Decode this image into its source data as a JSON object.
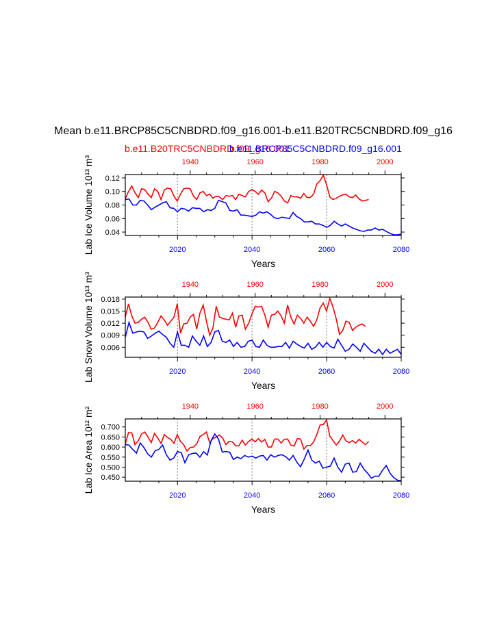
{
  "figure": {
    "title": "Mean b.e11.BRCP85C5CNBDRD.f09_g16.001-b.e11.B20TRC5CNBDRD.f09_g16",
    "legend_red": "b.e11.B20TRC5CNBDRD.f09_g16.001",
    "legend_blue": "b.e11.BRCP85C5CNBDRD.f09_g16.001",
    "colors": {
      "historical": "#ff0000",
      "rcp85": "#0000ff",
      "axis": "#000000",
      "refline": "#999999"
    }
  },
  "chart_data": [
    {
      "type": "line",
      "title": "",
      "xlabel": "Years",
      "ylabel": "Lab Ice Volume 10¹³ m³",
      "bottom_axis": {
        "range": [
          2006,
          2080
        ],
        "ticks": [
          2020,
          2040,
          2060,
          2080
        ],
        "color": "#0000ff"
      },
      "top_axis": {
        "range": [
          1920,
          2005
        ],
        "ticks": [
          1940,
          1960,
          1980,
          2000
        ],
        "color": "#ff0000"
      },
      "ylim": [
        0.035,
        0.125
      ],
      "yticks": [
        0.04,
        0.06,
        0.08,
        0.1,
        0.12
      ],
      "yticklabels": [
        "0.04",
        "0.06",
        "0.08",
        "0.10",
        "0.12"
      ],
      "ref_lines_x": [
        2020,
        2040,
        2060
      ],
      "series": [
        {
          "name": "b.e11.B20TRC5CNBDRD.f09_g16.001",
          "color": "#ff0000",
          "axis": "top",
          "x_start": 1920,
          "values": [
            0.089,
            0.1,
            0.108,
            0.098,
            0.091,
            0.104,
            0.103,
            0.096,
            0.091,
            0.104,
            0.1,
            0.088,
            0.102,
            0.105,
            0.104,
            0.093,
            0.086,
            0.096,
            0.104,
            0.105,
            0.104,
            0.093,
            0.088,
            0.098,
            0.1,
            0.094,
            0.096,
            0.09,
            0.093,
            0.092,
            0.088,
            0.094,
            0.093,
            0.094,
            0.088,
            0.096,
            0.094,
            0.092,
            0.1,
            0.103,
            0.1,
            0.096,
            0.102,
            0.098,
            0.085,
            0.09,
            0.1,
            0.098,
            0.093,
            0.086,
            0.083,
            0.094,
            0.092,
            0.092,
            0.09,
            0.097,
            0.091,
            0.091,
            0.096,
            0.111,
            0.116,
            0.124,
            0.11,
            0.092,
            0.088,
            0.09,
            0.093,
            0.095,
            0.096,
            0.092,
            0.091,
            0.095,
            0.089,
            0.086,
            0.087,
            0.088
          ]
        },
        {
          "name": "b.e11.BRCP85C5CNBDRD.f09_g16.001",
          "color": "#0000ff",
          "axis": "bottom",
          "x_start": 2006,
          "values": [
            0.088,
            0.089,
            0.08,
            0.08,
            0.087,
            0.086,
            0.08,
            0.073,
            0.077,
            0.08,
            0.083,
            0.085,
            0.076,
            0.075,
            0.07,
            0.075,
            0.074,
            0.071,
            0.076,
            0.075,
            0.075,
            0.07,
            0.073,
            0.072,
            0.075,
            0.087,
            0.085,
            0.083,
            0.072,
            0.071,
            0.073,
            0.065,
            0.065,
            0.064,
            0.063,
            0.065,
            0.07,
            0.068,
            0.07,
            0.066,
            0.061,
            0.06,
            0.062,
            0.061,
            0.06,
            0.069,
            0.063,
            0.06,
            0.055,
            0.055,
            0.056,
            0.052,
            0.052,
            0.05,
            0.047,
            0.05,
            0.056,
            0.052,
            0.049,
            0.052,
            0.049,
            0.046,
            0.044,
            0.042,
            0.041,
            0.043,
            0.043,
            0.046,
            0.043,
            0.044,
            0.041,
            0.038,
            0.036,
            0.036,
            0.037
          ]
        }
      ]
    },
    {
      "type": "line",
      "title": "",
      "xlabel": "Years",
      "ylabel": "Lab Snow Volume 10¹³ m³",
      "bottom_axis": {
        "range": [
          2006,
          2080
        ],
        "ticks": [
          2020,
          2040,
          2060,
          2080
        ],
        "color": "#0000ff"
      },
      "top_axis": {
        "range": [
          1920,
          2005
        ],
        "ticks": [
          1940,
          1960,
          1980,
          2000
        ],
        "color": "#ff0000"
      },
      "ylim": [
        0.0035,
        0.0185
      ],
      "yticks": [
        0.006,
        0.009,
        0.012,
        0.015,
        0.018
      ],
      "yticklabels": [
        "0.006",
        "0.009",
        "0.012",
        "0.015",
        "0.018"
      ],
      "ref_lines_x": [
        2020,
        2040,
        2060
      ],
      "series": [
        {
          "name": "b.e11.B20TRC5CNBDRD.f09_g16.001",
          "color": "#ff0000",
          "axis": "top",
          "x_start": 1920,
          "values": [
            0.0135,
            0.0168,
            0.0138,
            0.012,
            0.0122,
            0.013,
            0.0135,
            0.0122,
            0.0105,
            0.0108,
            0.0122,
            0.0138,
            0.0128,
            0.0115,
            0.0125,
            0.0135,
            0.0168,
            0.0095,
            0.0118,
            0.012,
            0.0135,
            0.0142,
            0.0105,
            0.0145,
            0.0165,
            0.0125,
            0.009,
            0.0108,
            0.0162,
            0.0135,
            0.0132,
            0.013,
            0.0128,
            0.0145,
            0.011,
            0.0138,
            0.014,
            0.0105,
            0.012,
            0.0142,
            0.0162,
            0.016,
            0.0162,
            0.014,
            0.011,
            0.014,
            0.0142,
            0.015,
            0.0138,
            0.012,
            0.0165,
            0.0135,
            0.0118,
            0.014,
            0.0132,
            0.012,
            0.0135,
            0.0125,
            0.0112,
            0.0128,
            0.0158,
            0.017,
            0.015,
            0.0182,
            0.016,
            0.013,
            0.0092,
            0.0102,
            0.0125,
            0.0122,
            0.0102,
            0.011,
            0.0115,
            0.0118,
            0.0112
          ]
        },
        {
          "name": "b.e11.BRCP85C5CNBDRD.f09_g16.001",
          "color": "#0000ff",
          "axis": "bottom",
          "x_start": 2006,
          "values": [
            0.0085,
            0.0122,
            0.0095,
            0.0098,
            0.01,
            0.0098,
            0.0082,
            0.0088,
            0.0095,
            0.01,
            0.0092,
            0.0085,
            0.007,
            0.006,
            0.0098,
            0.0065,
            0.0065,
            0.006,
            0.0088,
            0.0075,
            0.0065,
            0.0088,
            0.0062,
            0.0072,
            0.0098,
            0.0102,
            0.0075,
            0.0072,
            0.0078,
            0.0062,
            0.0072,
            0.006,
            0.0062,
            0.0075,
            0.0078,
            0.0062,
            0.006,
            0.0078,
            0.0065,
            0.006,
            0.006,
            0.0062,
            0.0062,
            0.0072,
            0.0058,
            0.0075,
            0.0068,
            0.0062,
            0.0058,
            0.007,
            0.0055,
            0.006,
            0.0072,
            0.006,
            0.0072,
            0.0062,
            0.0058,
            0.008,
            0.0065,
            0.005,
            0.0055,
            0.0068,
            0.006,
            0.005,
            0.007,
            0.006,
            0.005,
            0.0045,
            0.0055,
            0.0042,
            0.0055,
            0.0045,
            0.005,
            0.0055,
            0.0042
          ]
        }
      ]
    },
    {
      "type": "line",
      "title": "",
      "xlabel": "Years",
      "ylabel": "Lab Ice Area 10¹² m²",
      "bottom_axis": {
        "range": [
          2006,
          2080
        ],
        "ticks": [
          2020,
          2040,
          2060,
          2080
        ],
        "color": "#0000ff"
      },
      "top_axis": {
        "range": [
          1920,
          2005
        ],
        "ticks": [
          1940,
          1960,
          1980,
          2000
        ],
        "color": "#ff0000"
      },
      "ylim": [
        0.43,
        0.74
      ],
      "yticks": [
        0.45,
        0.5,
        0.55,
        0.6,
        0.65,
        0.7
      ],
      "yticklabels": [
        "0.450",
        "0.500",
        "0.550",
        "0.600",
        "0.650",
        "0.700"
      ],
      "ref_lines_x": [
        2020,
        2040,
        2060
      ],
      "series": [
        {
          "name": "b.e11.B20TRC5CNBDRD.f09_g16.001",
          "color": "#ff0000",
          "axis": "top",
          "x_start": 1920,
          "values": [
            0.615,
            0.672,
            0.67,
            0.612,
            0.632,
            0.665,
            0.675,
            0.65,
            0.622,
            0.668,
            0.645,
            0.618,
            0.662,
            0.648,
            0.638,
            0.618,
            0.662,
            0.628,
            0.612,
            0.58,
            0.598,
            0.6,
            0.615,
            0.652,
            0.662,
            0.675,
            0.62,
            0.642,
            0.65,
            0.66,
            0.645,
            0.612,
            0.628,
            0.626,
            0.606,
            0.606,
            0.634,
            0.61,
            0.628,
            0.64,
            0.626,
            0.642,
            0.625,
            0.638,
            0.6,
            0.6,
            0.64,
            0.64,
            0.62,
            0.638,
            0.64,
            0.61,
            0.605,
            0.642,
            0.64,
            0.59,
            0.608,
            0.606,
            0.625,
            0.662,
            0.71,
            0.712,
            0.735,
            0.655,
            0.632,
            0.61,
            0.63,
            0.66,
            0.63,
            0.622,
            0.632,
            0.62,
            0.638,
            0.625,
            0.612,
            0.628
          ]
        },
        {
          "name": "b.e11.BRCP85C5CNBDRD.f09_g16.001",
          "color": "#0000ff",
          "axis": "bottom",
          "x_start": 2006,
          "values": [
            0.612,
            0.61,
            0.588,
            0.57,
            0.62,
            0.598,
            0.566,
            0.55,
            0.582,
            0.588,
            0.61,
            0.562,
            0.535,
            0.545,
            0.578,
            0.572,
            0.522,
            0.562,
            0.568,
            0.57,
            0.55,
            0.577,
            0.56,
            0.632,
            0.665,
            0.64,
            0.575,
            0.578,
            0.574,
            0.538,
            0.55,
            0.542,
            0.558,
            0.55,
            0.555,
            0.545,
            0.555,
            0.558,
            0.535,
            0.562,
            0.55,
            0.558,
            0.562,
            0.552,
            0.535,
            0.558,
            0.525,
            0.502,
            0.54,
            0.585,
            0.535,
            0.52,
            0.53,
            0.495,
            0.5,
            0.505,
            0.545,
            0.5,
            0.475,
            0.515,
            0.52,
            0.475,
            0.478,
            0.52,
            0.49,
            0.47,
            0.445,
            0.455,
            0.455,
            0.485,
            0.508,
            0.47,
            0.448,
            0.435,
            0.432
          ]
        }
      ]
    }
  ]
}
